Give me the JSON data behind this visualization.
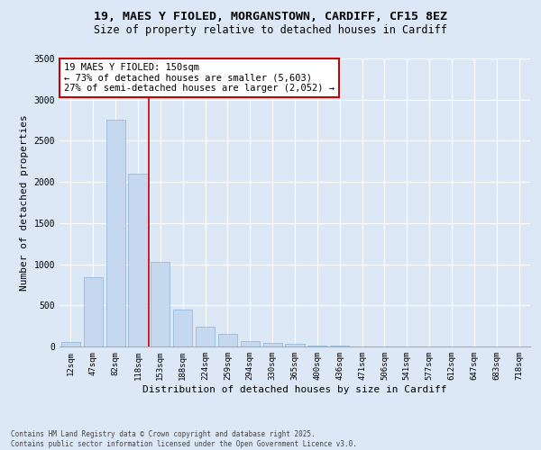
{
  "title_line1": "19, MAES Y FIOLED, MORGANSTOWN, CARDIFF, CF15 8EZ",
  "title_line2": "Size of property relative to detached houses in Cardiff",
  "xlabel": "Distribution of detached houses by size in Cardiff",
  "ylabel": "Number of detached properties",
  "categories": [
    "12sqm",
    "47sqm",
    "82sqm",
    "118sqm",
    "153sqm",
    "188sqm",
    "224sqm",
    "259sqm",
    "294sqm",
    "330sqm",
    "365sqm",
    "400sqm",
    "436sqm",
    "471sqm",
    "506sqm",
    "541sqm",
    "577sqm",
    "612sqm",
    "647sqm",
    "683sqm",
    "718sqm"
  ],
  "values": [
    50,
    840,
    2760,
    2100,
    1030,
    450,
    245,
    155,
    65,
    40,
    30,
    15,
    8,
    3,
    0,
    0,
    0,
    0,
    0,
    0,
    0
  ],
  "bar_color": "#c5d8ef",
  "bar_edge_color": "#8ab4d8",
  "vline_pos": 3.5,
  "vline_color": "#cc0000",
  "annotation_title": "19 MAES Y FIOLED: 150sqm",
  "annotation_line2": "← 73% of detached houses are smaller (5,603)",
  "annotation_line3": "27% of semi-detached houses are larger (2,052) →",
  "annotation_box_color": "#cc0000",
  "ylim": [
    0,
    3500
  ],
  "yticks": [
    0,
    500,
    1000,
    1500,
    2000,
    2500,
    3000,
    3500
  ],
  "bg_color": "#dce8f5",
  "plot_bg_color": "#dce8f5",
  "footer_line1": "Contains HM Land Registry data © Crown copyright and database right 2025.",
  "footer_line2": "Contains public sector information licensed under the Open Government Licence v3.0.",
  "title_fontsize": 9.5,
  "subtitle_fontsize": 8.5,
  "label_fontsize": 8,
  "tick_fontsize": 6.5,
  "annotation_fontsize": 7.5,
  "footer_fontsize": 5.5
}
